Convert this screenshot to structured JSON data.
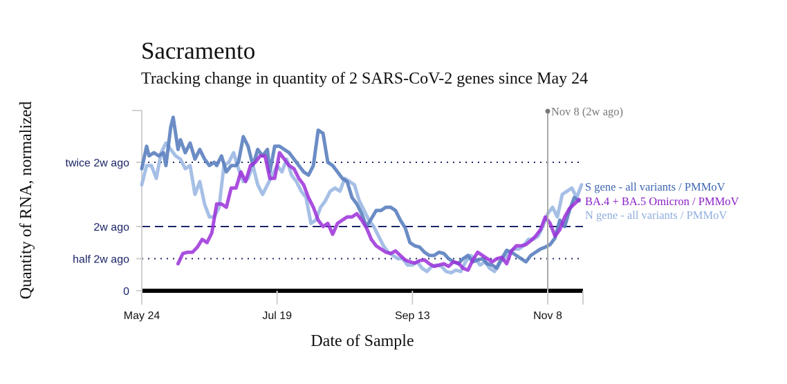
{
  "chart_data": {
    "type": "line",
    "title": "Sacramento",
    "subtitle": "Tracking change in quantity of 2 SARS-CoV-2 genes since May 24",
    "xlabel": "Date of Sample",
    "ylabel": "Quantity of RNA, normalized",
    "x_unit": "days since May 24",
    "xlim": [
      0,
      182
    ],
    "ylim": [
      0,
      2.8
    ],
    "x_ticks": [
      {
        "day": 0,
        "label": "May 24"
      },
      {
        "day": 56,
        "label": "Jul 19"
      },
      {
        "day": 112,
        "label": "Sep 13"
      },
      {
        "day": 168,
        "label": "Nov 8"
      }
    ],
    "y_ticks": [
      {
        "value": 0,
        "label": "0",
        "style": "solid-bold"
      },
      {
        "value": 0.5,
        "label": "half 2w ago",
        "style": "dotted"
      },
      {
        "value": 1,
        "label": "2w ago",
        "style": "dashed"
      },
      {
        "value": 2,
        "label": "twice 2w ago",
        "style": "dotted"
      }
    ],
    "reference_line": {
      "day": 168,
      "label": "Nov 8 (2w ago)"
    },
    "legend_placement": "right",
    "series": [
      {
        "name": "S gene - all variants / PMMoV",
        "color": "#5b7fbf",
        "x": [
          0,
          2,
          3,
          5,
          7,
          9,
          10,
          12,
          13,
          15,
          16,
          18,
          20,
          22,
          24,
          26,
          28,
          30,
          31,
          33,
          35,
          37,
          39,
          40,
          42,
          44,
          46,
          48,
          50,
          52,
          53,
          55,
          57,
          59,
          61,
          63,
          65,
          67,
          69,
          71,
          73,
          75,
          77,
          79,
          81,
          83,
          85,
          87,
          89,
          91,
          93,
          95,
          97,
          99,
          101,
          103,
          105,
          107,
          109,
          111,
          113,
          115,
          117,
          119,
          121,
          123,
          125,
          127,
          129,
          131,
          133,
          135,
          137,
          139,
          141,
          143,
          145,
          147,
          149,
          151,
          153,
          155,
          157,
          159,
          161,
          163,
          165,
          167,
          169,
          171,
          173,
          175,
          177,
          179,
          181
        ],
        "y": [
          1.9,
          2.25,
          2.1,
          2.15,
          2.1,
          2.15,
          1.95,
          2.55,
          2.7,
          2.2,
          2.35,
          2.15,
          2.3,
          2.05,
          2.2,
          2.05,
          1.95,
          2.0,
          1.95,
          2.1,
          1.85,
          1.95,
          1.95,
          2.0,
          2.4,
          2.25,
          1.95,
          2.2,
          2.1,
          2.2,
          1.85,
          2.25,
          2.25,
          2.2,
          2.15,
          2.05,
          1.95,
          1.85,
          1.8,
          1.95,
          2.5,
          2.45,
          2.0,
          1.95,
          1.85,
          1.75,
          1.7,
          1.45,
          1.35,
          1.2,
          1.0,
          1.12,
          1.25,
          1.25,
          1.3,
          1.3,
          1.25,
          1.1,
          0.98,
          0.75,
          0.7,
          0.68,
          0.6,
          0.55,
          0.55,
          0.6,
          0.58,
          0.5,
          0.45,
          0.42,
          0.5,
          0.55,
          0.45,
          0.48,
          0.5,
          0.42,
          0.4,
          0.35,
          0.5,
          0.63,
          0.6,
          0.55,
          0.5,
          0.45,
          0.55,
          0.6,
          0.65,
          0.68,
          0.72,
          0.82,
          1.1,
          1.0,
          1.25,
          1.45,
          1.4
        ],
        "width": 5,
        "opacity": 0.9
      },
      {
        "name": "BA.4 + BA.5 Omicron / PMMoV",
        "color": "#9b30d9",
        "x": [
          15,
          17,
          19,
          21,
          23,
          25,
          27,
          29,
          31,
          33,
          35,
          37,
          39,
          41,
          43,
          45,
          47,
          49,
          51,
          53,
          55,
          57,
          59,
          61,
          63,
          65,
          67,
          69,
          71,
          73,
          75,
          77,
          79,
          81,
          83,
          85,
          87,
          89,
          91,
          93,
          95,
          97,
          99,
          101,
          103,
          105,
          107,
          109,
          111,
          113,
          115,
          117,
          119,
          121,
          123,
          125,
          127,
          129,
          131,
          133,
          135,
          137,
          139,
          141,
          143,
          145,
          147,
          149,
          151,
          153,
          155,
          157,
          159,
          161,
          163,
          165,
          167,
          169,
          171,
          173,
          175,
          177,
          179,
          181
        ],
        "y": [
          0.42,
          0.58,
          0.6,
          0.6,
          0.68,
          0.8,
          0.75,
          0.9,
          1.35,
          1.35,
          1.3,
          1.6,
          1.6,
          1.85,
          1.7,
          1.95,
          2.0,
          2.1,
          2.1,
          1.75,
          1.75,
          2.15,
          2.05,
          1.95,
          1.9,
          1.75,
          1.65,
          1.45,
          1.3,
          1.1,
          1.0,
          1.05,
          0.88,
          1.05,
          1.1,
          1.15,
          1.15,
          1.2,
          1.1,
          0.98,
          0.8,
          0.7,
          0.65,
          0.6,
          0.58,
          0.62,
          0.55,
          0.48,
          0.45,
          0.43,
          0.47,
          0.48,
          0.42,
          0.38,
          0.4,
          0.42,
          0.38,
          0.45,
          0.43,
          0.35,
          0.32,
          0.48,
          0.6,
          0.55,
          0.5,
          0.45,
          0.5,
          0.52,
          0.42,
          0.62,
          0.7,
          0.7,
          0.72,
          0.78,
          0.85,
          0.95,
          1.15,
          1.05,
          0.85,
          0.95,
          1.15,
          1.28,
          1.35,
          1.42
        ],
        "width": 5,
        "opacity": 0.85
      },
      {
        "name": "N gene - all variants / PMMoV",
        "color": "#9cb8e3",
        "x": [
          0,
          2,
          4,
          6,
          8,
          10,
          12,
          14,
          16,
          18,
          20,
          22,
          24,
          26,
          28,
          30,
          32,
          34,
          36,
          38,
          40,
          42,
          44,
          46,
          48,
          50,
          52,
          54,
          56,
          58,
          60,
          62,
          64,
          66,
          68,
          70,
          72,
          74,
          76,
          78,
          80,
          82,
          84,
          86,
          88,
          90,
          92,
          94,
          96,
          98,
          100,
          102,
          104,
          106,
          108,
          110,
          112,
          114,
          116,
          118,
          120,
          122,
          124,
          126,
          128,
          130,
          132,
          134,
          136,
          138,
          140,
          142,
          144,
          146,
          148,
          150,
          152,
          154,
          156,
          158,
          160,
          162,
          164,
          166,
          168,
          170,
          172,
          174,
          176,
          178,
          180,
          182
        ],
        "y": [
          1.65,
          1.95,
          1.95,
          1.75,
          2.15,
          2.3,
          2.2,
          2.1,
          2.05,
          1.9,
          1.95,
          1.5,
          1.7,
          1.35,
          1.15,
          1.15,
          1.3,
          1.95,
          2.0,
          2.15,
          1.9,
          1.7,
          1.75,
          1.95,
          1.65,
          1.5,
          1.65,
          1.8,
          1.95,
          1.85,
          2.05,
          1.8,
          1.7,
          1.55,
          1.45,
          1.05,
          1.1,
          1.3,
          1.4,
          1.55,
          1.6,
          1.55,
          1.75,
          1.7,
          1.65,
          1.4,
          1.25,
          1.1,
          1.0,
          0.85,
          0.7,
          0.6,
          0.55,
          0.5,
          0.5,
          0.4,
          0.4,
          0.45,
          0.35,
          0.3,
          0.38,
          0.4,
          0.38,
          0.3,
          0.28,
          0.32,
          0.3,
          0.45,
          0.55,
          0.5,
          0.4,
          0.45,
          0.35,
          0.3,
          0.45,
          0.5,
          0.6,
          0.65,
          0.65,
          0.7,
          0.8,
          0.8,
          0.85,
          1.0,
          1.2,
          1.3,
          1.15,
          1.5,
          1.55,
          1.6,
          1.45,
          1.65
        ],
        "width": 5,
        "opacity": 0.9
      }
    ]
  }
}
